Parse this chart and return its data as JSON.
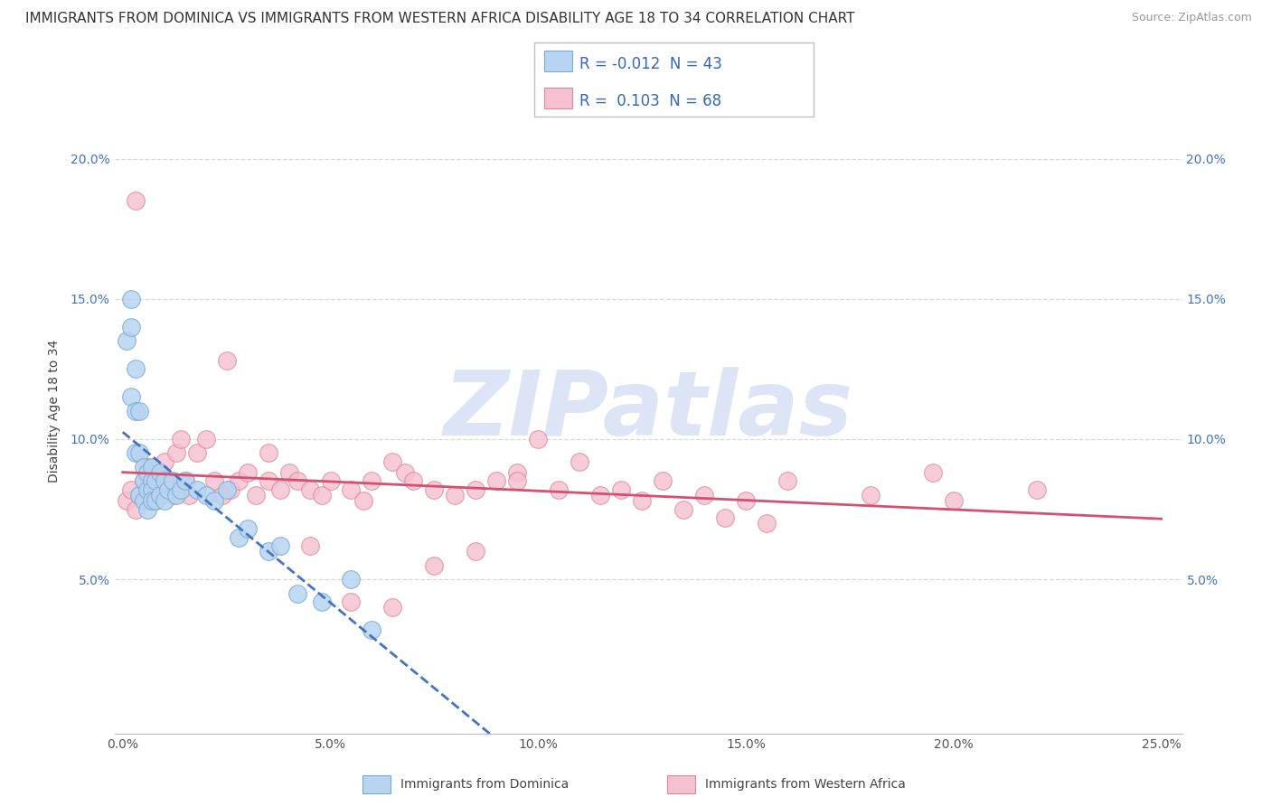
{
  "title": "IMMIGRANTS FROM DOMINICA VS IMMIGRANTS FROM WESTERN AFRICA DISABILITY AGE 18 TO 34 CORRELATION CHART",
  "source": "Source: ZipAtlas.com",
  "ylabel": "Disability Age 18 to 34",
  "xlim": [
    -0.002,
    0.255
  ],
  "ylim": [
    -0.005,
    0.225
  ],
  "xticks": [
    0.0,
    0.05,
    0.1,
    0.15,
    0.2,
    0.25
  ],
  "xtick_labels": [
    "0.0%",
    "5.0%",
    "10.0%",
    "15.0%",
    "20.0%",
    "25.0%"
  ],
  "yticks": [
    0.05,
    0.1,
    0.15,
    0.2
  ],
  "ytick_labels": [
    "5.0%",
    "10.0%",
    "15.0%",
    "20.0%"
  ],
  "series1_label": "Immigrants from Dominica",
  "series1_color": "#b8d4f0",
  "series1_edge_color": "#7aaad8",
  "series1_R": "-0.012",
  "series1_N": "43",
  "series2_label": "Immigrants from Western Africa",
  "series2_color": "#f5c0d0",
  "series2_edge_color": "#e08898",
  "series2_R": "0.103",
  "series2_N": "68",
  "trend1_color": "#4472c4",
  "trend2_color": "#d45070",
  "watermark": "ZIPatlas",
  "background_color": "#ffffff",
  "grid_color": "#d8d8d8",
  "series1_x": [
    0.001,
    0.002,
    0.002,
    0.003,
    0.003,
    0.003,
    0.004,
    0.004,
    0.004,
    0.005,
    0.005,
    0.005,
    0.006,
    0.006,
    0.006,
    0.007,
    0.007,
    0.007,
    0.007,
    0.008,
    0.008,
    0.009,
    0.009,
    0.01,
    0.01,
    0.011,
    0.012,
    0.013,
    0.014,
    0.015,
    0.018,
    0.02,
    0.022,
    0.025,
    0.028,
    0.03,
    0.035,
    0.038,
    0.042,
    0.048,
    0.055,
    0.06,
    0.002
  ],
  "series1_y": [
    0.135,
    0.15,
    0.115,
    0.125,
    0.11,
    0.095,
    0.11,
    0.095,
    0.08,
    0.09,
    0.085,
    0.078,
    0.088,
    0.082,
    0.075,
    0.09,
    0.085,
    0.082,
    0.078,
    0.085,
    0.078,
    0.088,
    0.08,
    0.085,
    0.078,
    0.082,
    0.085,
    0.08,
    0.082,
    0.085,
    0.082,
    0.08,
    0.078,
    0.082,
    0.065,
    0.068,
    0.06,
    0.062,
    0.045,
    0.042,
    0.05,
    0.032,
    0.14
  ],
  "series2_x": [
    0.001,
    0.002,
    0.003,
    0.004,
    0.005,
    0.006,
    0.007,
    0.008,
    0.009,
    0.01,
    0.011,
    0.012,
    0.013,
    0.014,
    0.015,
    0.016,
    0.018,
    0.02,
    0.022,
    0.024,
    0.026,
    0.028,
    0.03,
    0.032,
    0.035,
    0.038,
    0.04,
    0.042,
    0.045,
    0.048,
    0.05,
    0.055,
    0.058,
    0.06,
    0.065,
    0.068,
    0.07,
    0.075,
    0.08,
    0.085,
    0.09,
    0.095,
    0.1,
    0.11,
    0.12,
    0.13,
    0.14,
    0.15,
    0.16,
    0.18,
    0.2,
    0.22,
    0.025,
    0.035,
    0.045,
    0.055,
    0.065,
    0.075,
    0.085,
    0.095,
    0.105,
    0.115,
    0.125,
    0.135,
    0.145,
    0.155,
    0.195,
    0.003
  ],
  "series2_y": [
    0.078,
    0.082,
    0.075,
    0.08,
    0.085,
    0.09,
    0.082,
    0.078,
    0.088,
    0.092,
    0.085,
    0.08,
    0.095,
    0.1,
    0.085,
    0.08,
    0.095,
    0.1,
    0.085,
    0.08,
    0.082,
    0.085,
    0.088,
    0.08,
    0.085,
    0.082,
    0.088,
    0.085,
    0.082,
    0.08,
    0.085,
    0.082,
    0.078,
    0.085,
    0.092,
    0.088,
    0.085,
    0.082,
    0.08,
    0.082,
    0.085,
    0.088,
    0.1,
    0.092,
    0.082,
    0.085,
    0.08,
    0.078,
    0.085,
    0.08,
    0.078,
    0.082,
    0.128,
    0.095,
    0.062,
    0.042,
    0.04,
    0.055,
    0.06,
    0.085,
    0.082,
    0.08,
    0.078,
    0.075,
    0.072,
    0.07,
    0.088,
    0.185
  ],
  "title_fontsize": 11,
  "axis_fontsize": 10,
  "tick_fontsize": 10,
  "legend_fontsize": 12
}
